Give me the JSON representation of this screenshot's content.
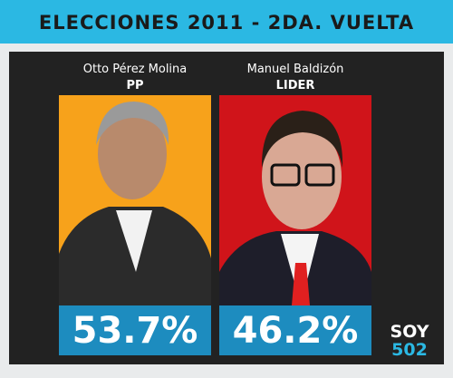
{
  "header": {
    "title": "ELECCIONES 2011 - 2DA. VUELTA"
  },
  "candidates": [
    {
      "name": "Otto Pérez Molina",
      "party": "PP",
      "result": "53.7%"
    },
    {
      "name": "Manuel Baldizón",
      "party": "LIDER",
      "result": "46.2%"
    }
  ],
  "logo": {
    "top": "SOY",
    "bottom": "502"
  }
}
